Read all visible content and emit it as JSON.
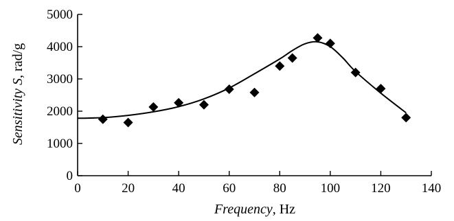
{
  "chart_data": {
    "type": "scatter",
    "xlabel": {
      "italic": "Frequency",
      "rest": ", Hz"
    },
    "ylabel": {
      "italic": "Sensitivity S",
      "rest": ", rad/g"
    },
    "xlim": [
      0,
      140
    ],
    "ylim": [
      0,
      5000
    ],
    "xticks": [
      0,
      20,
      40,
      60,
      80,
      100,
      120,
      140
    ],
    "yticks": [
      0,
      1000,
      2000,
      3000,
      4000,
      5000
    ],
    "grid": false,
    "series": [
      {
        "marker": "diamond",
        "x": [
          10,
          20,
          30,
          40,
          50,
          60,
          70,
          80,
          85,
          95,
          100,
          110,
          120,
          130
        ],
        "y": [
          1750,
          1650,
          2130,
          2260,
          2200,
          2680,
          2580,
          3400,
          3650,
          4270,
          4100,
          3200,
          2700,
          1800
        ]
      },
      {
        "style": "line",
        "x": [
          0,
          10,
          20,
          30,
          40,
          50,
          60,
          70,
          80,
          85,
          90,
          95,
          100,
          105,
          110,
          120,
          130
        ],
        "y": [
          1780,
          1800,
          1870,
          1980,
          2140,
          2380,
          2720,
          3160,
          3620,
          3880,
          4090,
          4150,
          4000,
          3650,
          3230,
          2560,
          1950
        ]
      }
    ]
  }
}
